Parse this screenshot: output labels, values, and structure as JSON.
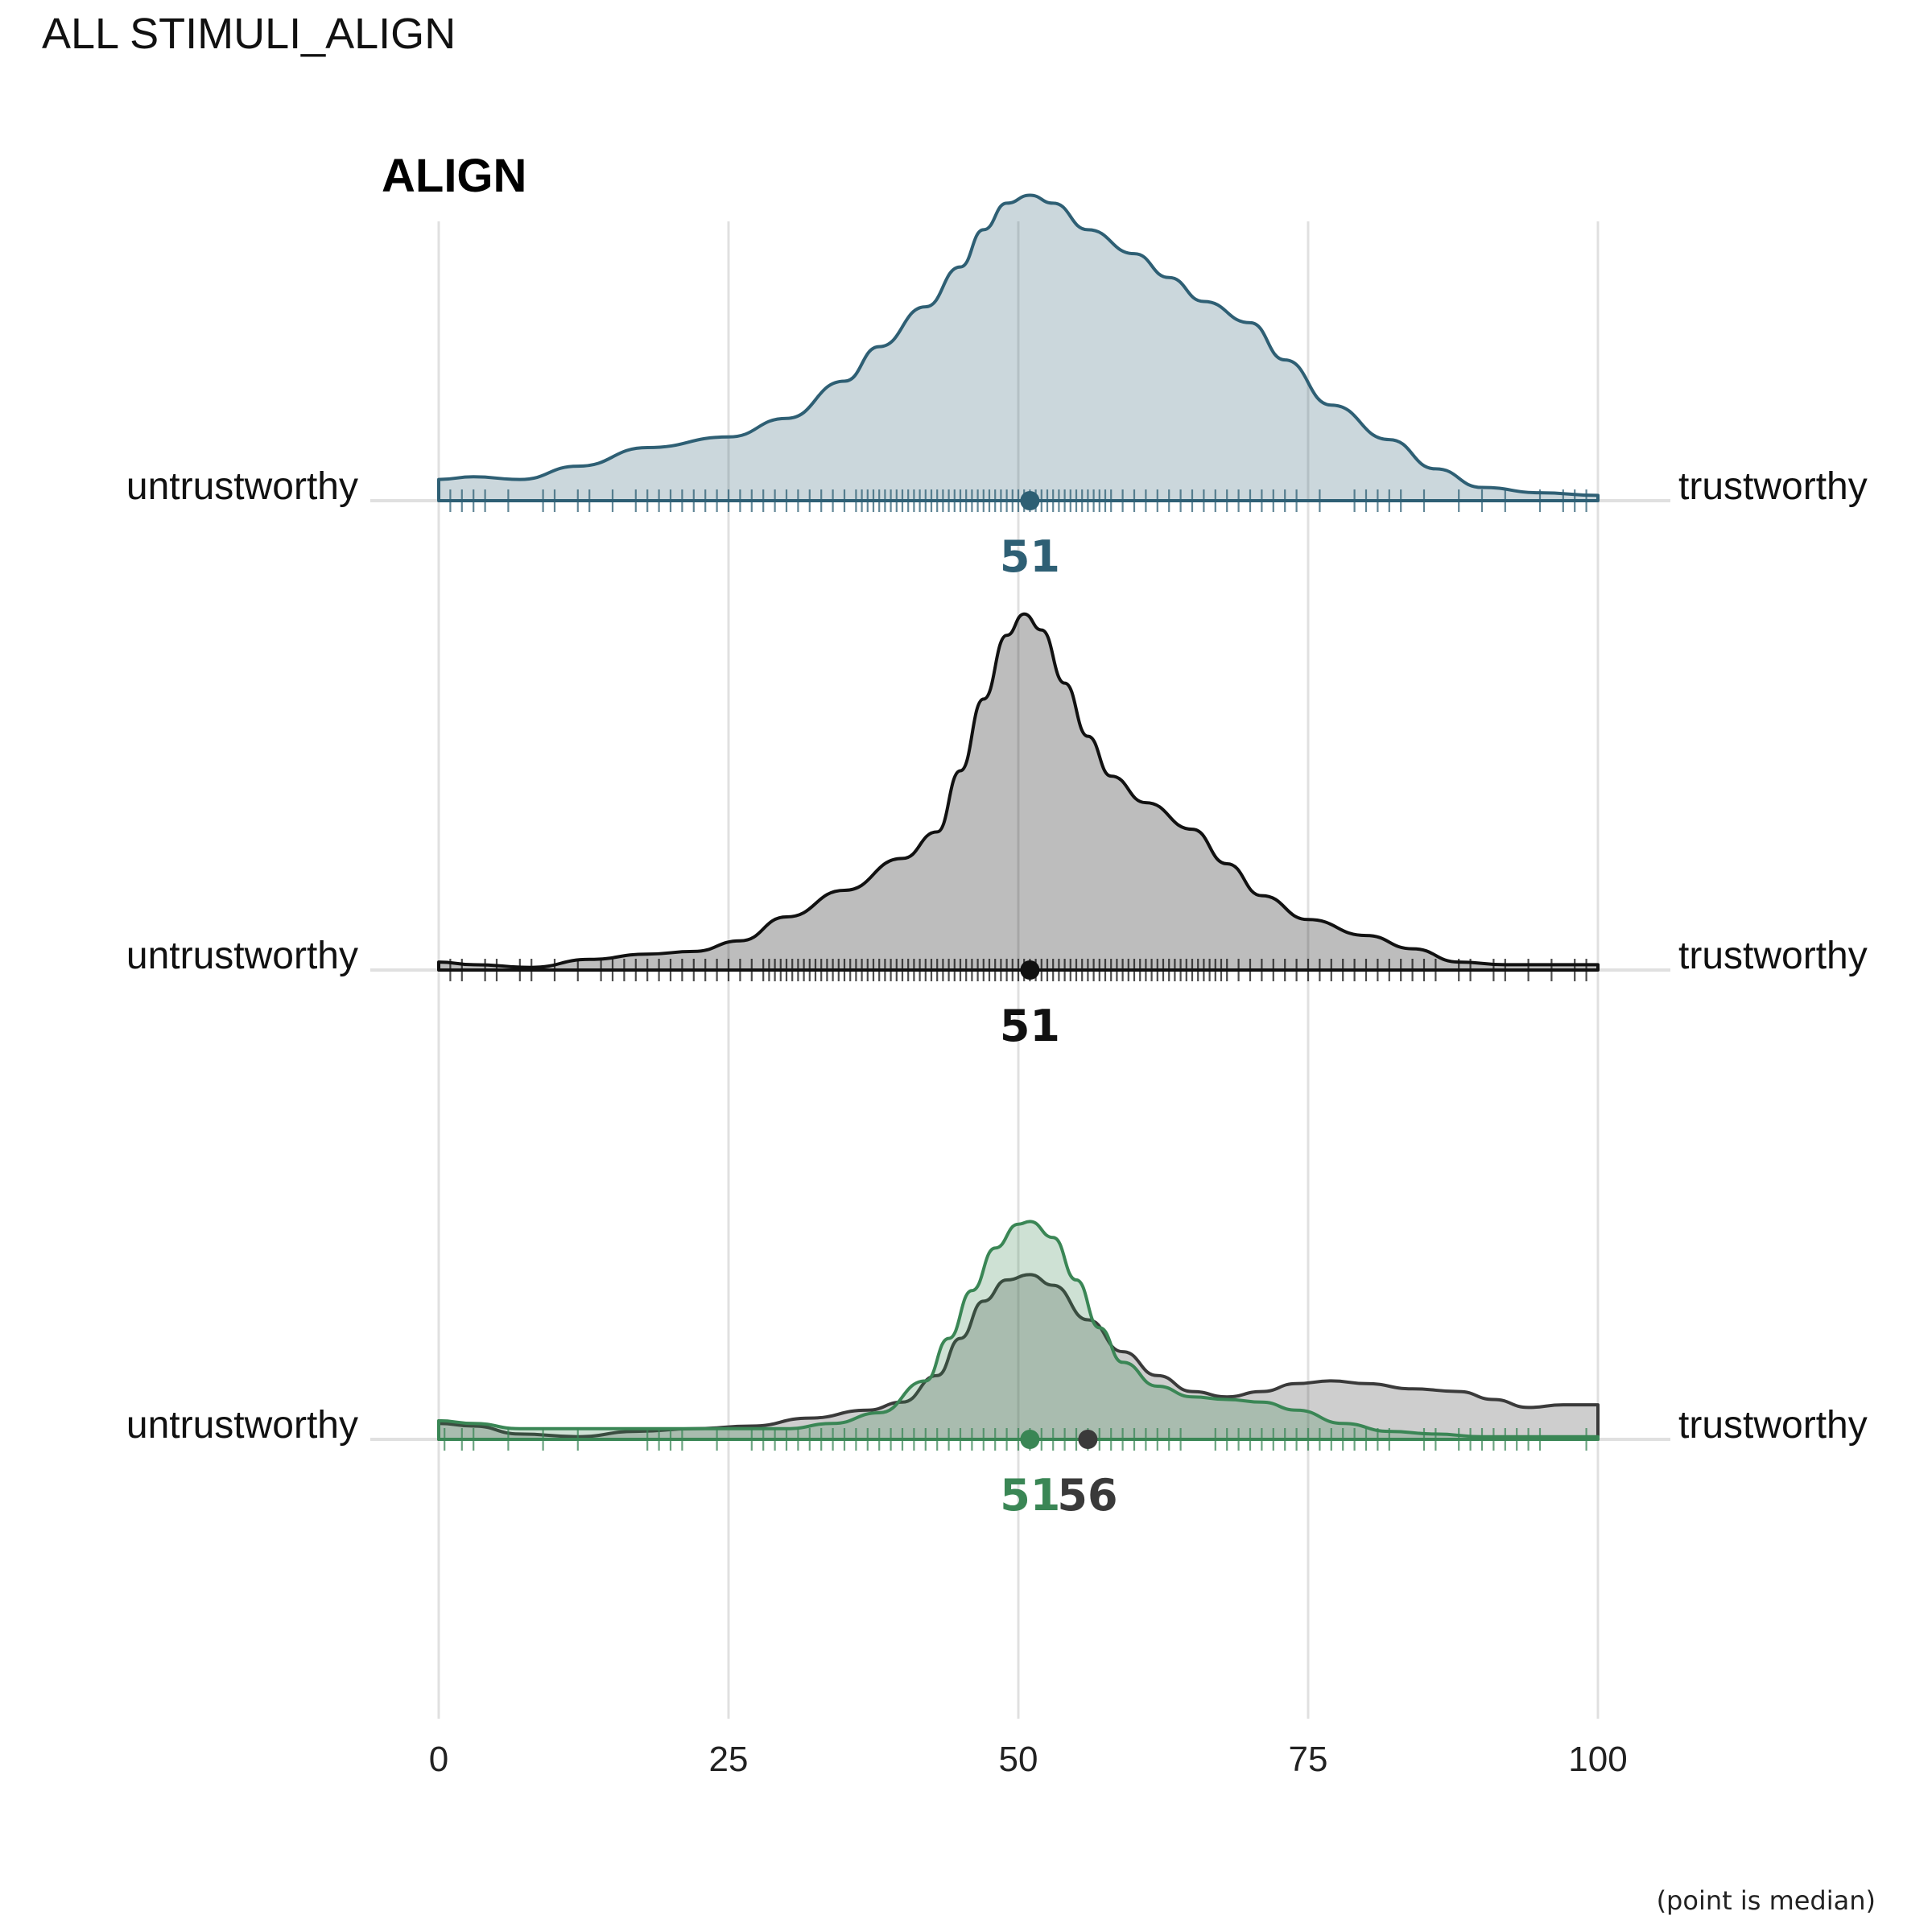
{
  "page_title": "ALL STIMULI_ALIGN",
  "caption": "(point is median)",
  "colors": {
    "blue": "#2e5f74",
    "black": "#111111",
    "green": "#3a8655",
    "dark": "#3a3a3a",
    "grid": "#e0e0e0"
  },
  "chart_data": {
    "type": "density-ridgeline",
    "title": "ALIGN",
    "x_range": [
      0,
      100
    ],
    "x_ticks": [
      0,
      25,
      50,
      75,
      100
    ],
    "x_tick_labels": [
      "0",
      "25",
      "50",
      "75",
      "100"
    ],
    "rows": [
      {
        "left_label": "untrustworthy",
        "right_label": "trustworthy",
        "series": [
          {
            "color": "blue",
            "fill_opacity": 0.25,
            "median": 51,
            "median_label": "51",
            "density": [
              [
                0,
                0.08
              ],
              [
                3,
                0.09
              ],
              [
                7,
                0.08
              ],
              [
                12,
                0.13
              ],
              [
                18,
                0.2
              ],
              [
                25,
                0.24
              ],
              [
                30,
                0.31
              ],
              [
                35,
                0.45
              ],
              [
                38,
                0.58
              ],
              [
                42,
                0.73
              ],
              [
                45,
                0.88
              ],
              [
                47,
                1.02
              ],
              [
                49,
                1.12
              ],
              [
                51,
                1.15
              ],
              [
                53,
                1.12
              ],
              [
                56,
                1.02
              ],
              [
                60,
                0.93
              ],
              [
                63,
                0.84
              ],
              [
                66,
                0.75
              ],
              [
                70,
                0.67
              ],
              [
                73,
                0.53
              ],
              [
                77,
                0.36
              ],
              [
                82,
                0.23
              ],
              [
                86,
                0.12
              ],
              [
                90,
                0.05
              ],
              [
                95,
                0.03
              ],
              [
                100,
                0.02
              ]
            ],
            "rug": [
              1,
              2,
              3,
              4,
              6,
              9,
              10,
              12,
              13,
              15,
              17,
              18,
              19,
              20,
              21,
              22,
              23,
              24,
              25,
              26,
              27,
              28,
              29,
              30,
              31,
              32,
              33,
              34,
              35,
              36,
              36.5,
              37,
              37.5,
              38,
              38.5,
              39,
              39.5,
              40,
              40.5,
              41,
              41.5,
              42,
              42.5,
              43,
              43.5,
              44,
              44.5,
              45,
              45.5,
              46,
              46.5,
              47,
              47.5,
              48,
              48.5,
              49,
              49.5,
              50,
              50.5,
              51,
              51.5,
              52,
              52.5,
              53,
              53.5,
              54,
              54.5,
              55,
              55.5,
              56,
              56.5,
              57,
              57.5,
              58,
              59,
              60,
              61,
              62,
              63,
              64,
              65,
              66,
              67,
              68,
              69,
              70,
              71,
              72,
              73,
              74,
              76,
              79,
              80,
              81,
              82,
              83,
              85,
              88,
              90,
              92,
              95,
              97,
              98,
              99
            ]
          }
        ]
      },
      {
        "left_label": "untrustworthy",
        "right_label": "trustworthy",
        "series": [
          {
            "color": "black",
            "fill_opacity": 0.28,
            "median": 51,
            "median_label": "51",
            "density": [
              [
                0,
                0.03
              ],
              [
                3,
                0.02
              ],
              [
                8,
                0.01
              ],
              [
                13,
                0.04
              ],
              [
                18,
                0.06
              ],
              [
                22,
                0.07
              ],
              [
                26,
                0.11
              ],
              [
                30,
                0.2
              ],
              [
                35,
                0.3
              ],
              [
                40,
                0.42
              ],
              [
                43,
                0.52
              ],
              [
                45,
                0.75
              ],
              [
                47,
                1.02
              ],
              [
                49,
                1.26
              ],
              [
                50.5,
                1.34
              ],
              [
                52,
                1.28
              ],
              [
                54,
                1.08
              ],
              [
                56,
                0.88
              ],
              [
                58,
                0.73
              ],
              [
                61,
                0.63
              ],
              [
                65,
                0.53
              ],
              [
                68,
                0.4
              ],
              [
                71,
                0.28
              ],
              [
                75,
                0.19
              ],
              [
                80,
                0.13
              ],
              [
                84,
                0.08
              ],
              [
                88,
                0.03
              ],
              [
                92,
                0.02
              ],
              [
                96,
                0.02
              ],
              [
                100,
                0.02
              ]
            ],
            "rug": [
              1,
              2,
              4,
              5,
              7,
              8,
              10,
              12,
              14,
              15,
              16,
              17,
              18,
              19,
              20,
              21,
              22,
              23,
              24,
              25,
              26,
              27,
              28,
              28.5,
              29,
              29.5,
              30,
              30.5,
              31,
              31.5,
              32,
              32.5,
              33,
              33.5,
              34,
              34.5,
              35,
              35.5,
              36,
              36.5,
              37,
              37.5,
              38,
              38.5,
              39,
              39.5,
              40,
              40.5,
              41,
              41.5,
              42,
              42.5,
              43,
              43.5,
              44,
              44.5,
              45,
              45.5,
              46,
              46.5,
              47,
              47.5,
              48,
              48.5,
              49,
              49.5,
              50,
              50.5,
              51,
              51.5,
              52,
              52.5,
              53,
              53.5,
              54,
              54.5,
              55,
              55.5,
              56,
              56.5,
              57,
              57.5,
              58,
              58.5,
              59,
              59.5,
              60,
              60.5,
              61,
              61.5,
              62,
              62.5,
              63,
              63.5,
              64,
              64.5,
              65,
              65.5,
              66,
              66.5,
              67,
              67.5,
              68,
              69,
              70,
              71,
              72,
              73,
              74,
              75,
              76,
              77,
              78,
              79,
              80,
              81,
              82,
              83,
              84,
              85,
              86,
              88,
              89,
              91,
              92,
              94,
              96,
              98,
              99
            ]
          }
        ]
      },
      {
        "left_label": "untrustworthy",
        "right_label": "trustworthy",
        "series": [
          {
            "color": "dark",
            "fill_opacity": 0.25,
            "median": 56,
            "median_label": "56",
            "density": [
              [
                0,
                0.06
              ],
              [
                3,
                0.05
              ],
              [
                7,
                0.02
              ],
              [
                12,
                0.01
              ],
              [
                17,
                0.03
              ],
              [
                22,
                0.04
              ],
              [
                27,
                0.05
              ],
              [
                32,
                0.08
              ],
              [
                37,
                0.11
              ],
              [
                40,
                0.14
              ],
              [
                43,
                0.24
              ],
              [
                45,
                0.38
              ],
              [
                47,
                0.52
              ],
              [
                49,
                0.6
              ],
              [
                51,
                0.62
              ],
              [
                53,
                0.58
              ],
              [
                56,
                0.45
              ],
              [
                59,
                0.33
              ],
              [
                62,
                0.24
              ],
              [
                65,
                0.18
              ],
              [
                68,
                0.16
              ],
              [
                71,
                0.18
              ],
              [
                74,
                0.21
              ],
              [
                77,
                0.22
              ],
              [
                80,
                0.21
              ],
              [
                84,
                0.19
              ],
              [
                88,
                0.18
              ],
              [
                91,
                0.15
              ],
              [
                94,
                0.12
              ],
              [
                97,
                0.13
              ],
              [
                100,
                0.13
              ]
            ],
            "rug": []
          },
          {
            "color": "green",
            "fill_opacity": 0.25,
            "median": 51,
            "median_label": "51",
            "density": [
              [
                0,
                0.07
              ],
              [
                3,
                0.06
              ],
              [
                7,
                0.04
              ],
              [
                12,
                0.04
              ],
              [
                18,
                0.04
              ],
              [
                25,
                0.04
              ],
              [
                30,
                0.04
              ],
              [
                34,
                0.06
              ],
              [
                38,
                0.1
              ],
              [
                42,
                0.22
              ],
              [
                44,
                0.38
              ],
              [
                46,
                0.56
              ],
              [
                48,
                0.72
              ],
              [
                50,
                0.81
              ],
              [
                51,
                0.82
              ],
              [
                53,
                0.76
              ],
              [
                55,
                0.6
              ],
              [
                57,
                0.42
              ],
              [
                59,
                0.29
              ],
              [
                62,
                0.2
              ],
              [
                65,
                0.16
              ],
              [
                68,
                0.15
              ],
              [
                71,
                0.14
              ],
              [
                74,
                0.11
              ],
              [
                78,
                0.06
              ],
              [
                82,
                0.03
              ],
              [
                86,
                0.02
              ],
              [
                90,
                0.01
              ],
              [
                95,
                0.01
              ],
              [
                100,
                0.01
              ]
            ],
            "rug": [
              0.5,
              2,
              3,
              6,
              9,
              12,
              18,
              19,
              20,
              21,
              24,
              27,
              28,
              29,
              30,
              31,
              32,
              33,
              34,
              35,
              36,
              37,
              38,
              39,
              40,
              41,
              42,
              43,
              44,
              45,
              46,
              47,
              48,
              49,
              50,
              51,
              52,
              53,
              54,
              55,
              56,
              57,
              58,
              59,
              60,
              61,
              62,
              63,
              64,
              67,
              68,
              69,
              70,
              71,
              72,
              73,
              74,
              75,
              76,
              77,
              78,
              79,
              80,
              81,
              82,
              85,
              86,
              88,
              89,
              90,
              91,
              92,
              93,
              94,
              95,
              99
            ]
          }
        ]
      }
    ]
  }
}
